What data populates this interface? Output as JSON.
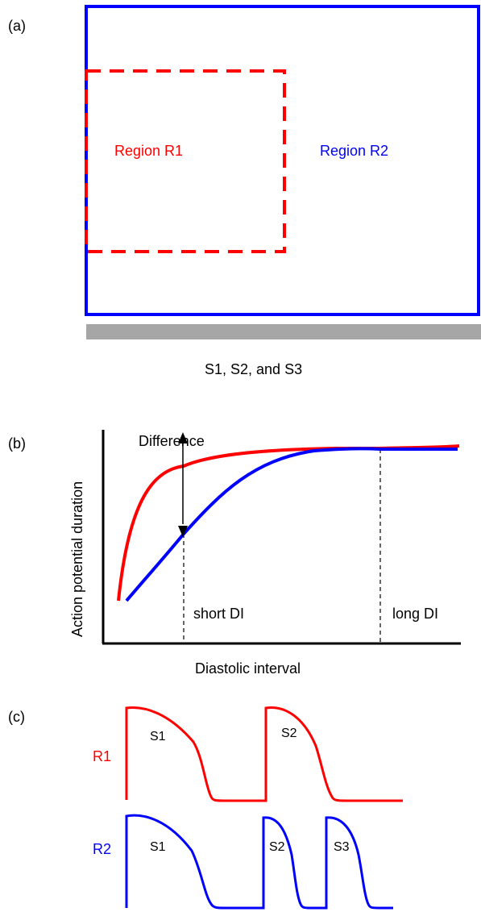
{
  "colors": {
    "r1": "#ff0000",
    "r2": "#0000ff",
    "stimulus_bar": "#a6a6a6",
    "axis": "#000000"
  },
  "panel_a": {
    "tag": "(a)",
    "region_r1_label": "Region R1",
    "region_r2_label": "Region R2",
    "stimulus_label": "S1, S2, and S3"
  },
  "panel_b": {
    "tag": "(b)",
    "ylabel": "Action potential duration",
    "xlabel": "Diastolic interval",
    "difference_label": "Difference",
    "short_di_label": "short DI",
    "long_di_label": "long DI"
  },
  "panel_c": {
    "tag": "(c)",
    "r1_label": "R1",
    "r2_label": "R2",
    "r1_beats": [
      "S1",
      "S2"
    ],
    "r2_beats": [
      "S1",
      "S2",
      "S3"
    ]
  }
}
